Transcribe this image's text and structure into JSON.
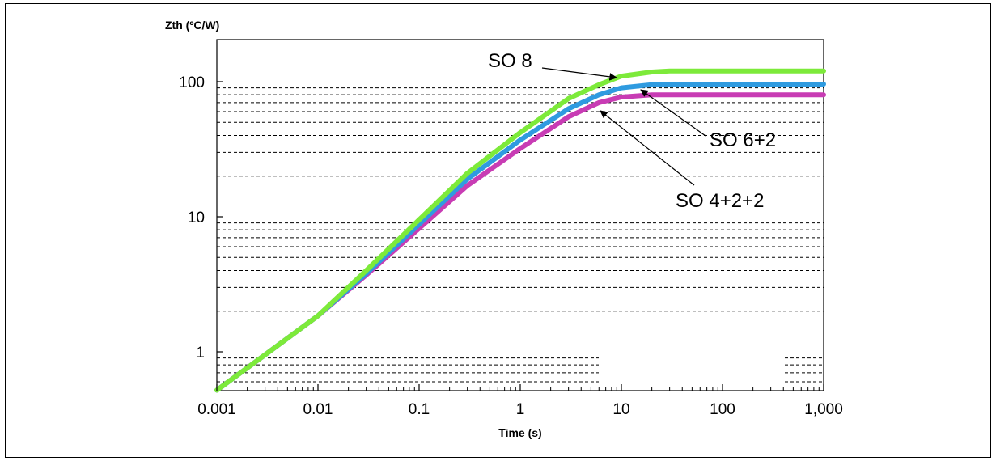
{
  "chart_data": {
    "type": "line",
    "title": "",
    "ylabel": "Zth (ºC/W)",
    "xlabel": "Time (s)",
    "x_scale": "log",
    "y_scale": "log",
    "xlim": [
      0.001,
      1000
    ],
    "ylim": [
      0.5,
      200
    ],
    "x_ticks": [
      0.001,
      0.01,
      0.1,
      1,
      10,
      100,
      1000
    ],
    "x_tick_labels": [
      "0.001",
      "0.01",
      "0.1",
      "1",
      "10",
      "100",
      "1,000"
    ],
    "y_ticks": [
      1,
      10,
      100
    ],
    "y_tick_labels": [
      "1",
      "10",
      "100"
    ],
    "grid": "dashed horizontal lines at minor decade values",
    "series": [
      {
        "name": "SO 8",
        "color": "#7dea3a",
        "points": [
          [
            0.001,
            0.52
          ],
          [
            0.003,
            0.95
          ],
          [
            0.01,
            1.85
          ],
          [
            0.03,
            4.0
          ],
          [
            0.1,
            9.5
          ],
          [
            0.3,
            21
          ],
          [
            1,
            42
          ],
          [
            3,
            75
          ],
          [
            6,
            95
          ],
          [
            10,
            110
          ],
          [
            20,
            118
          ],
          [
            30,
            120
          ],
          [
            1000,
            120
          ]
        ]
      },
      {
        "name": "SO 6+2",
        "color": "#2f9be0",
        "points": [
          [
            0.001,
            0.52
          ],
          [
            0.003,
            0.95
          ],
          [
            0.01,
            1.85
          ],
          [
            0.03,
            3.8
          ],
          [
            0.1,
            8.8
          ],
          [
            0.3,
            19
          ],
          [
            1,
            37
          ],
          [
            3,
            63
          ],
          [
            6,
            80
          ],
          [
            10,
            90
          ],
          [
            20,
            95
          ],
          [
            30,
            96
          ],
          [
            1000,
            96
          ]
        ]
      },
      {
        "name": "SO 4+2+2",
        "color": "#c83cb4",
        "points": [
          [
            0.001,
            0.52
          ],
          [
            0.003,
            0.95
          ],
          [
            0.01,
            1.85
          ],
          [
            0.03,
            3.7
          ],
          [
            0.1,
            8.2
          ],
          [
            0.3,
            17
          ],
          [
            1,
            32
          ],
          [
            3,
            55
          ],
          [
            6,
            70
          ],
          [
            10,
            77
          ],
          [
            20,
            80
          ],
          [
            1000,
            80
          ]
        ]
      }
    ],
    "annotations": [
      {
        "text": "SO 8",
        "series": "SO 8"
      },
      {
        "text": "SO 6+2",
        "series": "SO 6+2"
      },
      {
        "text": "SO 4+2+2",
        "series": "SO 4+2+2"
      }
    ]
  }
}
